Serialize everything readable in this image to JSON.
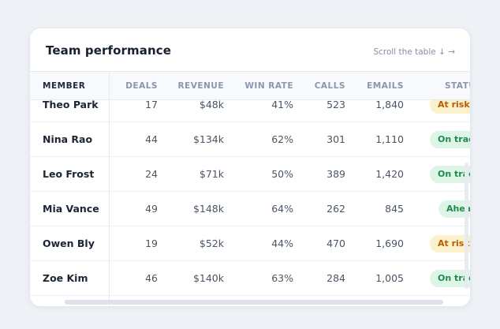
{
  "card": {
    "title": "Team performance",
    "scroll_hint": "Scroll the table ↓ →"
  },
  "table": {
    "columns": [
      "MEMBER",
      "DEALS",
      "REVENUE",
      "WIN RATE",
      "CALLS",
      "EMAILS",
      "STATUS"
    ],
    "rows": [
      {
        "member": "Theo Park",
        "deals": "17",
        "revenue": "$48k",
        "win_rate": "41%",
        "calls": "523",
        "emails": "1,840",
        "status": "At risk",
        "status_tone": "warn"
      },
      {
        "member": "Nina Rao",
        "deals": "44",
        "revenue": "$134k",
        "win_rate": "62%",
        "calls": "301",
        "emails": "1,110",
        "status": "On track",
        "status_tone": "good"
      },
      {
        "member": "Leo Frost",
        "deals": "24",
        "revenue": "$71k",
        "win_rate": "50%",
        "calls": "389",
        "emails": "1,420",
        "status": "On track",
        "status_tone": "good"
      },
      {
        "member": "Mia Vance",
        "deals": "49",
        "revenue": "$148k",
        "win_rate": "64%",
        "calls": "262",
        "emails": "845",
        "status": "Ahead",
        "status_tone": "good"
      },
      {
        "member": "Owen Bly",
        "deals": "19",
        "revenue": "$52k",
        "win_rate": "44%",
        "calls": "470",
        "emails": "1,690",
        "status": "At risk",
        "status_tone": "warn"
      },
      {
        "member": "Zoe Kim",
        "deals": "46",
        "revenue": "$140k",
        "win_rate": "63%",
        "calls": "284",
        "emails": "1,005",
        "status": "On track",
        "status_tone": "good"
      }
    ]
  },
  "colors": {
    "warn_bg": "#fdf1cc",
    "warn_text": "#b45d09",
    "good_bg": "#dcf5e6",
    "good_text": "#1f8a4c"
  }
}
